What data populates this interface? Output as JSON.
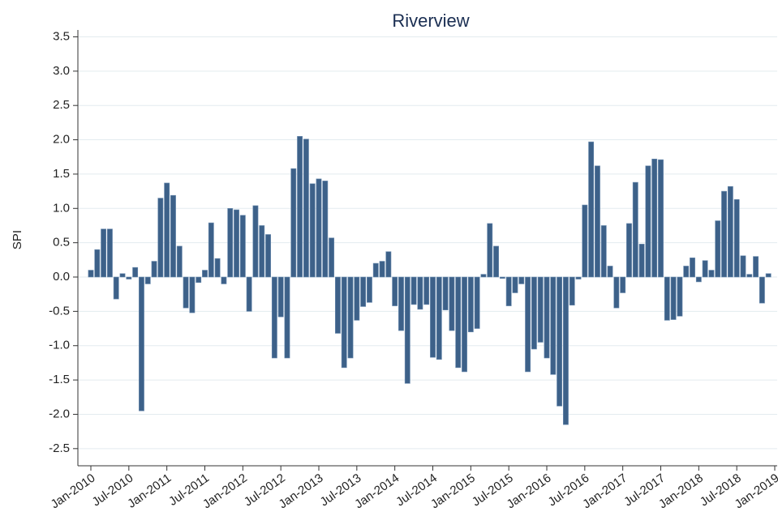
{
  "chart_data": {
    "type": "bar",
    "title": "Riverview",
    "y_label": "SPI",
    "categories": [
      "Jan-2010",
      null,
      null,
      null,
      null,
      null,
      "Jul-2010",
      null,
      null,
      null,
      null,
      null,
      "Jan-2011",
      null,
      null,
      null,
      null,
      null,
      "Jul-2011",
      null,
      null,
      null,
      null,
      null,
      "Jan-2012",
      null,
      null,
      null,
      null,
      null,
      "Jul-2012",
      null,
      null,
      null,
      null,
      null,
      "Jan-2013",
      null,
      null,
      null,
      null,
      null,
      "Jul-2013",
      null,
      null,
      null,
      null,
      null,
      "Jan-2014",
      null,
      null,
      null,
      null,
      null,
      "Jul-2014",
      null,
      null,
      null,
      null,
      null,
      "Jan-2015",
      null,
      null,
      null,
      null,
      null,
      "Jul-2015",
      null,
      null,
      null,
      null,
      null,
      "Jan-2016",
      null,
      null,
      null,
      null,
      null,
      "Jul-2016",
      null,
      null,
      null,
      null,
      null,
      "Jan-2017",
      null,
      null,
      null,
      null,
      null,
      "Jul-2017",
      null,
      null,
      null,
      null,
      null,
      "Jan-2018",
      null,
      null,
      null,
      null,
      null,
      "Jul-2018",
      null,
      null,
      null,
      null,
      null,
      "Jan-2019"
    ],
    "values": [
      0.1,
      0.4,
      0.7,
      0.7,
      -0.32,
      0.05,
      -0.03,
      0.14,
      -1.95,
      -0.1,
      0.23,
      1.15,
      1.37,
      1.19,
      0.45,
      -0.45,
      -0.52,
      -0.08,
      0.1,
      0.79,
      0.27,
      -0.1,
      1.0,
      0.98,
      0.9,
      -0.5,
      1.04,
      0.75,
      0.62,
      -1.18,
      -0.58,
      -1.18,
      1.58,
      2.05,
      2.01,
      1.36,
      1.43,
      1.4,
      0.57,
      -0.82,
      -1.32,
      -1.18,
      -0.63,
      -0.43,
      -0.37,
      0.2,
      0.23,
      0.37,
      -0.42,
      -0.78,
      -1.55,
      -0.4,
      -0.47,
      -0.4,
      -1.17,
      -1.2,
      -0.48,
      -0.78,
      -1.32,
      -1.38,
      -0.8,
      -0.75,
      0.04,
      0.78,
      0.45,
      -0.02,
      -0.42,
      -0.23,
      -0.1,
      -1.38,
      -1.05,
      -0.95,
      -1.18,
      -1.42,
      -1.88,
      -2.15,
      -0.41,
      -0.03,
      1.05,
      1.97,
      1.62,
      0.75,
      0.16,
      -0.45,
      -0.23,
      0.78,
      1.38,
      0.48,
      1.62,
      1.72,
      1.71,
      -0.63,
      -0.62,
      -0.57,
      0.16,
      0.28,
      -0.07,
      0.24,
      0.1,
      0.82,
      1.25,
      1.32,
      1.13,
      0.31,
      0.04,
      0.3,
      -0.38,
      0.05,
      null
    ],
    "color": "#3d6189",
    "ylim": [
      -2.75,
      3.6
    ],
    "yticks": [
      3.5,
      {
        "value": 3,
        "label": "3.0"
      },
      2.5,
      {
        "value": 2,
        "label": "2.0"
      },
      1.5,
      {
        "value": 1,
        "label": "1.0"
      },
      0.5,
      {
        "value": 0,
        "label": "0.0"
      },
      -0.5,
      {
        "value": -1,
        "label": "-1.0"
      },
      -1.5,
      {
        "value": -2,
        "label": "-2.0"
      },
      -2.5
    ],
    "grid": true
  }
}
